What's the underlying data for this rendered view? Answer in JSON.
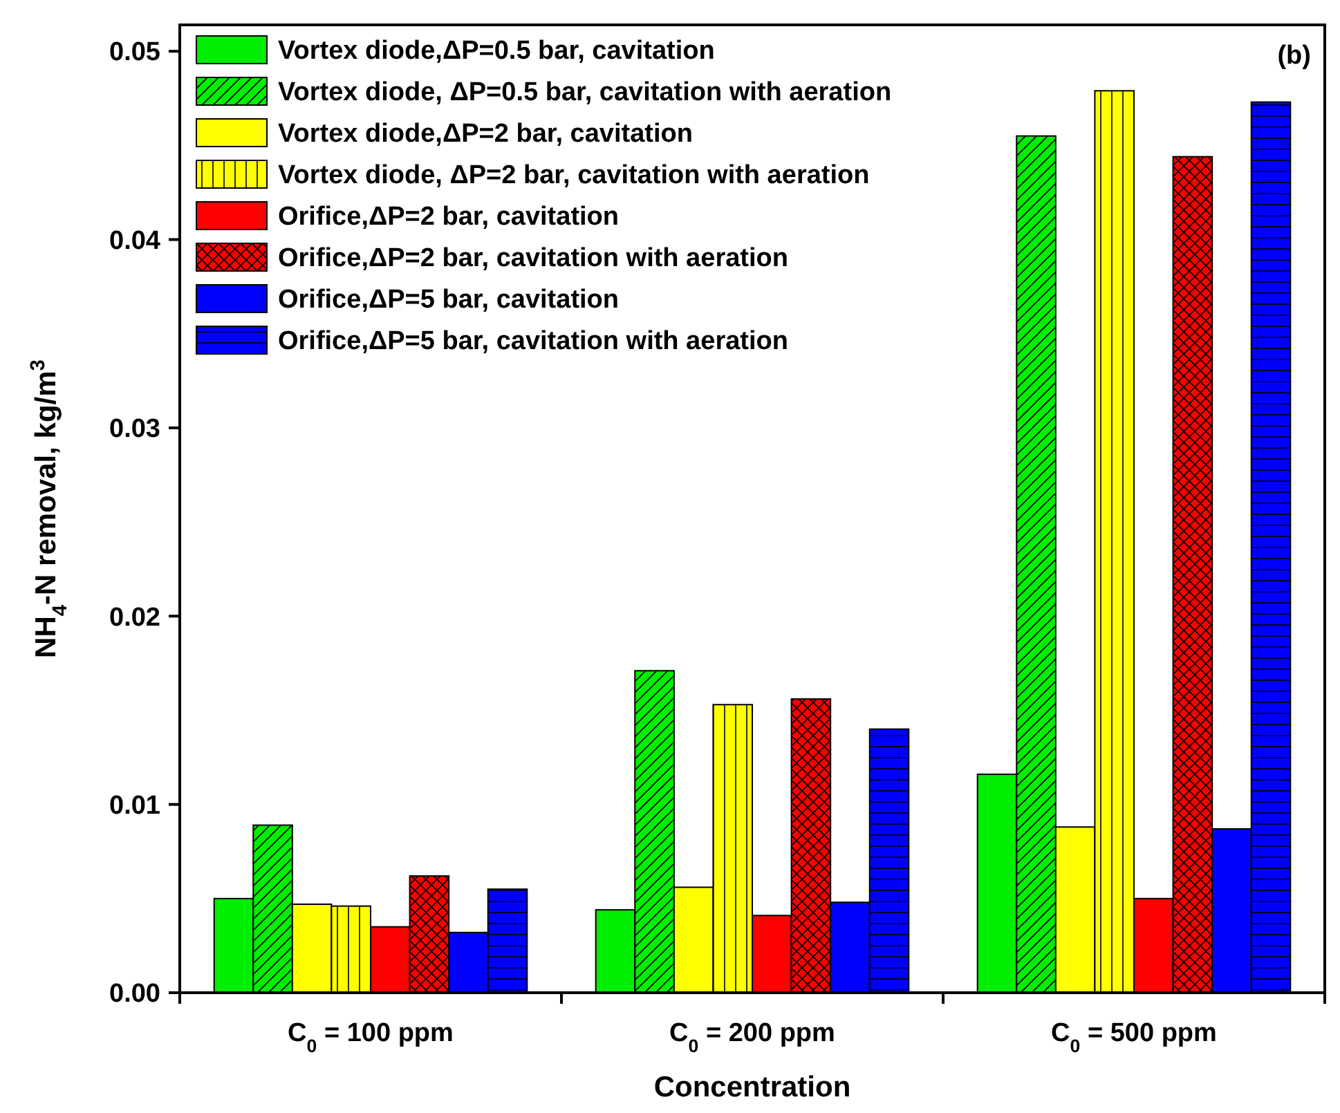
{
  "chart_data": {
    "type": "bar",
    "xlabel": "Concentration",
    "ylabel": "NH$_{4}$-N removal, kg/m$^{3}$",
    "categories": [
      "C$_{0}$ = 100 ppm",
      "C$_{0}$ = 200 ppm",
      "C$_{0}$ = 500 ppm"
    ],
    "series": [
      {
        "name": "Vortex diode,ΔP=0.5 bar, cavitation",
        "color": "#00ee00",
        "values": [
          0.005,
          0.0044,
          0.0116
        ]
      },
      {
        "name": "Vortex diode, ΔP=0.5 bar, cavitation with aeration",
        "color": "#00ee00",
        "values": [
          0.0089,
          0.0171,
          0.0455
        ]
      },
      {
        "name": "Vortex diode,ΔP=2 bar, cavitation",
        "color": "#ffff00",
        "values": [
          0.0047,
          0.0056,
          0.0088
        ]
      },
      {
        "name": "Vortex diode, ΔP=2 bar, cavitation with aeration",
        "color": "#ffff00",
        "values": [
          0.0046,
          0.0153,
          0.0479
        ]
      },
      {
        "name": "Orifice,ΔP=2 bar, cavitation",
        "color": "#ff0000",
        "values": [
          0.0035,
          0.0041,
          0.005
        ]
      },
      {
        "name": "Orifice,ΔP=2 bar, cavitation with aeration",
        "color": "#ff0000",
        "values": [
          0.0062,
          0.0156,
          0.0444
        ]
      },
      {
        "name": "Orifice,ΔP=5 bar, cavitation",
        "color": "#0000ff",
        "values": [
          0.0032,
          0.0048,
          0.0087
        ]
      },
      {
        "name": "Orifice,ΔP=5 bar, cavitation with aeration",
        "color": "#0000ff",
        "values": [
          0.0055,
          0.014,
          0.0473
        ]
      }
    ],
    "ylim": [
      0,
      0.0514
    ],
    "yticks": [
      {
        "value": 0,
        "label": "0.00"
      },
      {
        "value": 0.01,
        "label": "0.01"
      },
      {
        "value": 0.02,
        "label": "0.02"
      },
      {
        "value": 0.03,
        "label": "0.03"
      },
      {
        "value": 0.04,
        "label": "0.04"
      },
      {
        "value": 0.05,
        "label": "0.05"
      }
    ],
    "legend": "top left",
    "grid": false,
    "annotations": [
      "(b)"
    ]
  }
}
